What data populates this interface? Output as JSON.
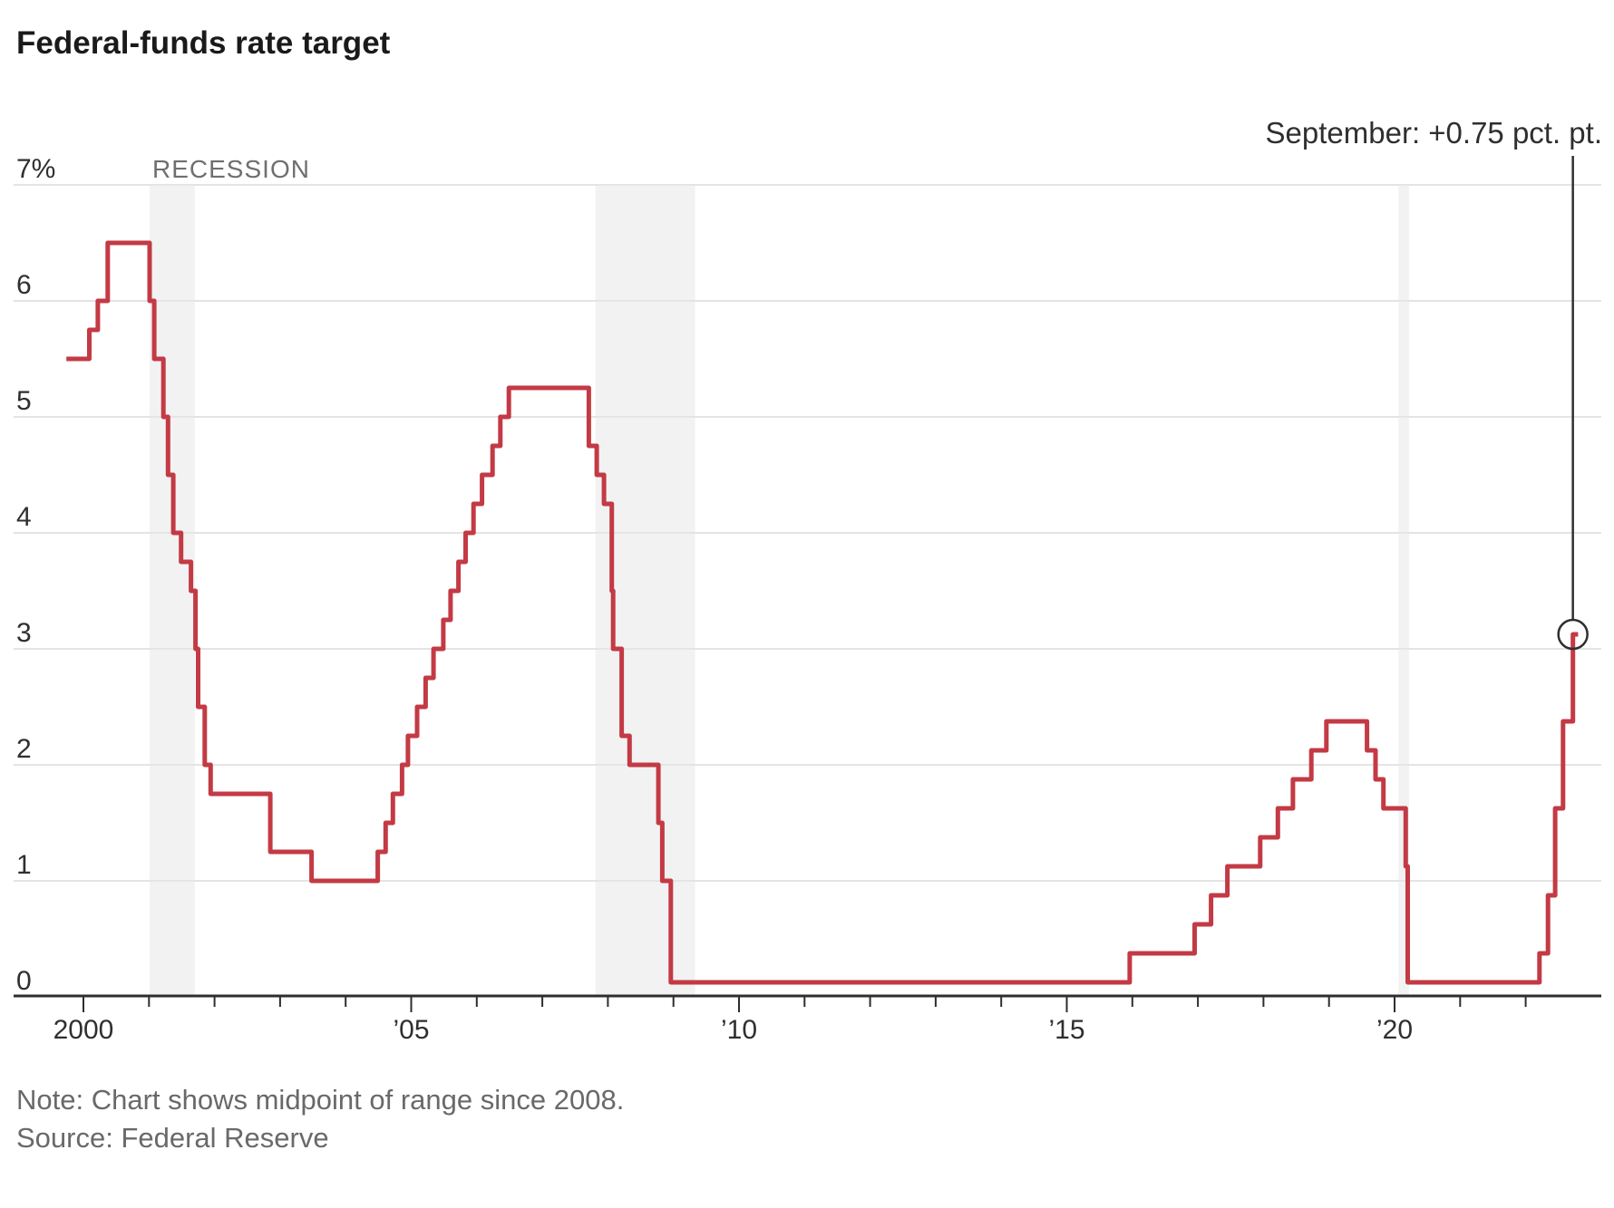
{
  "title": "Federal-funds rate target",
  "note": "Note: Chart shows midpoint of range since 2008.",
  "source": "Source: Federal Reserve",
  "recession_label": "RECESSION",
  "annotation": {
    "label": "September: +0.75 pct. pt.",
    "t": 2022.72,
    "value": 3.125
  },
  "colors": {
    "line": "#c33a45",
    "grid": "#e4e4e4",
    "axis": "#2e2e2e",
    "band": "#f2f2f2",
    "title_text": "#1a1a1a",
    "gray_text": "#696969",
    "recession_text": "#6f6f6f",
    "tick_text": "#2f2f2f",
    "annotation_text": "#2f2f2f"
  },
  "chart_data": {
    "type": "line",
    "subtype": "step",
    "title": "Federal-funds rate target",
    "ylabel": "percent",
    "xlabel": "year",
    "ylim": [
      0,
      7
    ],
    "xlim": [
      1999.74,
      2022.95
    ],
    "grid": true,
    "y_ticks": [
      {
        "value": 7,
        "label": "7%"
      },
      {
        "value": 6,
        "label": "6"
      },
      {
        "value": 5,
        "label": "5"
      },
      {
        "value": 4,
        "label": "4"
      },
      {
        "value": 3,
        "label": "3"
      },
      {
        "value": 2,
        "label": "2"
      },
      {
        "value": 1,
        "label": "1"
      },
      {
        "value": 0,
        "label": "0"
      }
    ],
    "x_ticks_labeled": [
      {
        "t": 2000,
        "label": "2000"
      },
      {
        "t": 2005,
        "label": "’05"
      },
      {
        "t": 2010,
        "label": "’10"
      },
      {
        "t": 2015,
        "label": "’15"
      },
      {
        "t": 2020,
        "label": "’20"
      }
    ],
    "x_minor_ticks_every_year_from": 2000,
    "x_minor_ticks_every_year_to": 2022,
    "recession_bands": [
      {
        "t0": 2001.01,
        "t1": 2001.7
      },
      {
        "t0": 2007.81,
        "t1": 2009.33
      },
      {
        "t0": 2020.06,
        "t1": 2020.22
      }
    ],
    "series": [
      {
        "name": "Federal-funds rate target (midpoint of range since 2008)",
        "start_t": 1999.74,
        "start_value": 5.5,
        "end_t": 2022.8,
        "steps": [
          {
            "t": 2000.09,
            "value": 5.75
          },
          {
            "t": 2000.22,
            "value": 6.0
          },
          {
            "t": 2000.37,
            "value": 6.5
          },
          {
            "t": 2001.01,
            "value": 6.0
          },
          {
            "t": 2001.08,
            "value": 5.5
          },
          {
            "t": 2001.22,
            "value": 5.0
          },
          {
            "t": 2001.29,
            "value": 4.5
          },
          {
            "t": 2001.37,
            "value": 4.0
          },
          {
            "t": 2001.49,
            "value": 3.75
          },
          {
            "t": 2001.64,
            "value": 3.5
          },
          {
            "t": 2001.71,
            "value": 3.0
          },
          {
            "t": 2001.75,
            "value": 2.5
          },
          {
            "t": 2001.85,
            "value": 2.0
          },
          {
            "t": 2001.94,
            "value": 1.75
          },
          {
            "t": 2002.85,
            "value": 1.25
          },
          {
            "t": 2003.48,
            "value": 1.0
          },
          {
            "t": 2004.49,
            "value": 1.25
          },
          {
            "t": 2004.61,
            "value": 1.5
          },
          {
            "t": 2004.72,
            "value": 1.75
          },
          {
            "t": 2004.86,
            "value": 2.0
          },
          {
            "t": 2004.95,
            "value": 2.25
          },
          {
            "t": 2005.09,
            "value": 2.5
          },
          {
            "t": 2005.22,
            "value": 2.75
          },
          {
            "t": 2005.34,
            "value": 3.0
          },
          {
            "t": 2005.49,
            "value": 3.25
          },
          {
            "t": 2005.6,
            "value": 3.5
          },
          {
            "t": 2005.72,
            "value": 3.75
          },
          {
            "t": 2005.83,
            "value": 4.0
          },
          {
            "t": 2005.95,
            "value": 4.25
          },
          {
            "t": 2006.08,
            "value": 4.5
          },
          {
            "t": 2006.24,
            "value": 4.75
          },
          {
            "t": 2006.36,
            "value": 5.0
          },
          {
            "t": 2006.49,
            "value": 5.25
          },
          {
            "t": 2007.71,
            "value": 4.75
          },
          {
            "t": 2007.83,
            "value": 4.5
          },
          {
            "t": 2007.94,
            "value": 4.25
          },
          {
            "t": 2008.06,
            "value": 3.5
          },
          {
            "t": 2008.08,
            "value": 3.0
          },
          {
            "t": 2008.21,
            "value": 2.25
          },
          {
            "t": 2008.33,
            "value": 2.0
          },
          {
            "t": 2008.77,
            "value": 1.5
          },
          {
            "t": 2008.83,
            "value": 1.0
          },
          {
            "t": 2008.96,
            "value": 0.125
          },
          {
            "t": 2015.96,
            "value": 0.375
          },
          {
            "t": 2016.95,
            "value": 0.625
          },
          {
            "t": 2017.2,
            "value": 0.875
          },
          {
            "t": 2017.45,
            "value": 1.125
          },
          {
            "t": 2017.95,
            "value": 1.375
          },
          {
            "t": 2018.22,
            "value": 1.625
          },
          {
            "t": 2018.45,
            "value": 1.875
          },
          {
            "t": 2018.73,
            "value": 2.125
          },
          {
            "t": 2018.96,
            "value": 2.375
          },
          {
            "t": 2019.58,
            "value": 2.125
          },
          {
            "t": 2019.71,
            "value": 1.875
          },
          {
            "t": 2019.83,
            "value": 1.625
          },
          {
            "t": 2020.17,
            "value": 1.125
          },
          {
            "t": 2020.2,
            "value": 0.125
          },
          {
            "t": 2022.21,
            "value": 0.375
          },
          {
            "t": 2022.34,
            "value": 0.875
          },
          {
            "t": 2022.45,
            "value": 1.625
          },
          {
            "t": 2022.57,
            "value": 2.375
          },
          {
            "t": 2022.72,
            "value": 3.125
          }
        ]
      }
    ],
    "legend": null
  }
}
